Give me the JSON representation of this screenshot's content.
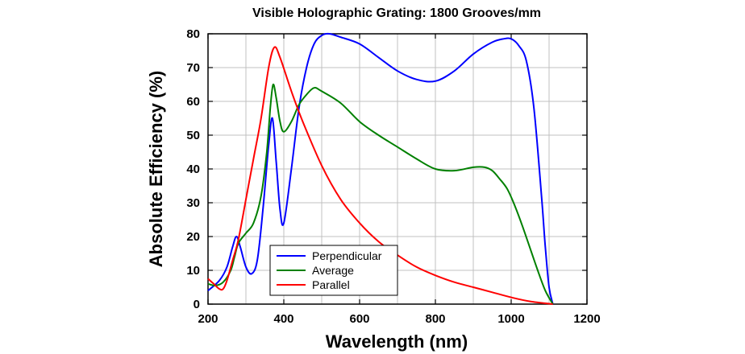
{
  "chart_data": {
    "type": "line",
    "title": "Visible Holographic Grating: 1800 Grooves/mm",
    "xlabel": "Wavelength (nm)",
    "ylabel": "Absolute Efficiency (%)",
    "xlim": [
      200,
      1200
    ],
    "ylim": [
      0,
      80
    ],
    "x_ticks": [
      200,
      400,
      600,
      800,
      1000,
      1200
    ],
    "y_ticks": [
      0,
      10,
      20,
      30,
      40,
      50,
      60,
      70,
      80
    ],
    "grid": true,
    "legend_position": "bottom-left",
    "series": [
      {
        "name": "Perpendicular",
        "color": "#0000ff",
        "x": [
          200,
          230,
          250,
          265,
          275,
          285,
          300,
          315,
          330,
          345,
          360,
          370,
          380,
          390,
          400,
          420,
          440,
          460,
          480,
          500,
          520,
          550,
          600,
          650,
          700,
          750,
          800,
          850,
          900,
          950,
          980,
          1000,
          1020,
          1040,
          1060,
          1080,
          1090,
          1100,
          1110
        ],
        "y": [
          4,
          7,
          11,
          17,
          20,
          17,
          11,
          9,
          13,
          28,
          47,
          55,
          42,
          28,
          24,
          40,
          58,
          70,
          77,
          79.5,
          80,
          79,
          77,
          73,
          69,
          66.5,
          66,
          69,
          74,
          77.5,
          78.5,
          78.5,
          76.5,
          72,
          58,
          32,
          17,
          5,
          0
        ]
      },
      {
        "name": "Average",
        "color": "#008000",
        "x": [
          200,
          220,
          240,
          260,
          270,
          280,
          300,
          320,
          340,
          355,
          365,
          372,
          380,
          390,
          400,
          420,
          440,
          460,
          480,
          500,
          550,
          600,
          650,
          700,
          750,
          800,
          850,
          900,
          930,
          950,
          970,
          990,
          1010,
          1030,
          1050,
          1070,
          1090,
          1110
        ],
        "y": [
          6,
          5.5,
          6.5,
          10,
          14,
          18,
          21,
          24,
          32,
          45,
          59,
          65,
          61,
          54,
          51,
          54,
          59,
          62,
          64,
          63,
          59.5,
          54,
          50,
          46.5,
          43,
          40,
          39.5,
          40.5,
          40.5,
          39.5,
          37,
          34,
          29,
          23,
          16.5,
          10,
          4,
          0
        ]
      },
      {
        "name": "Parallel",
        "color": "#ff0000",
        "x": [
          200,
          215,
          230,
          240,
          250,
          265,
          280,
          300,
          320,
          340,
          360,
          375,
          390,
          420,
          450,
          500,
          550,
          600,
          650,
          700,
          750,
          800,
          850,
          900,
          950,
          1000,
          1050,
          1110
        ],
        "y": [
          7.5,
          6,
          4.5,
          4.5,
          7,
          13,
          19,
          31,
          43,
          55,
          70,
          76,
          73,
          63,
          54,
          41,
          31,
          24,
          18.5,
          14.5,
          11,
          8.5,
          6.5,
          5,
          3.5,
          2,
          0.8,
          0
        ]
      }
    ]
  }
}
